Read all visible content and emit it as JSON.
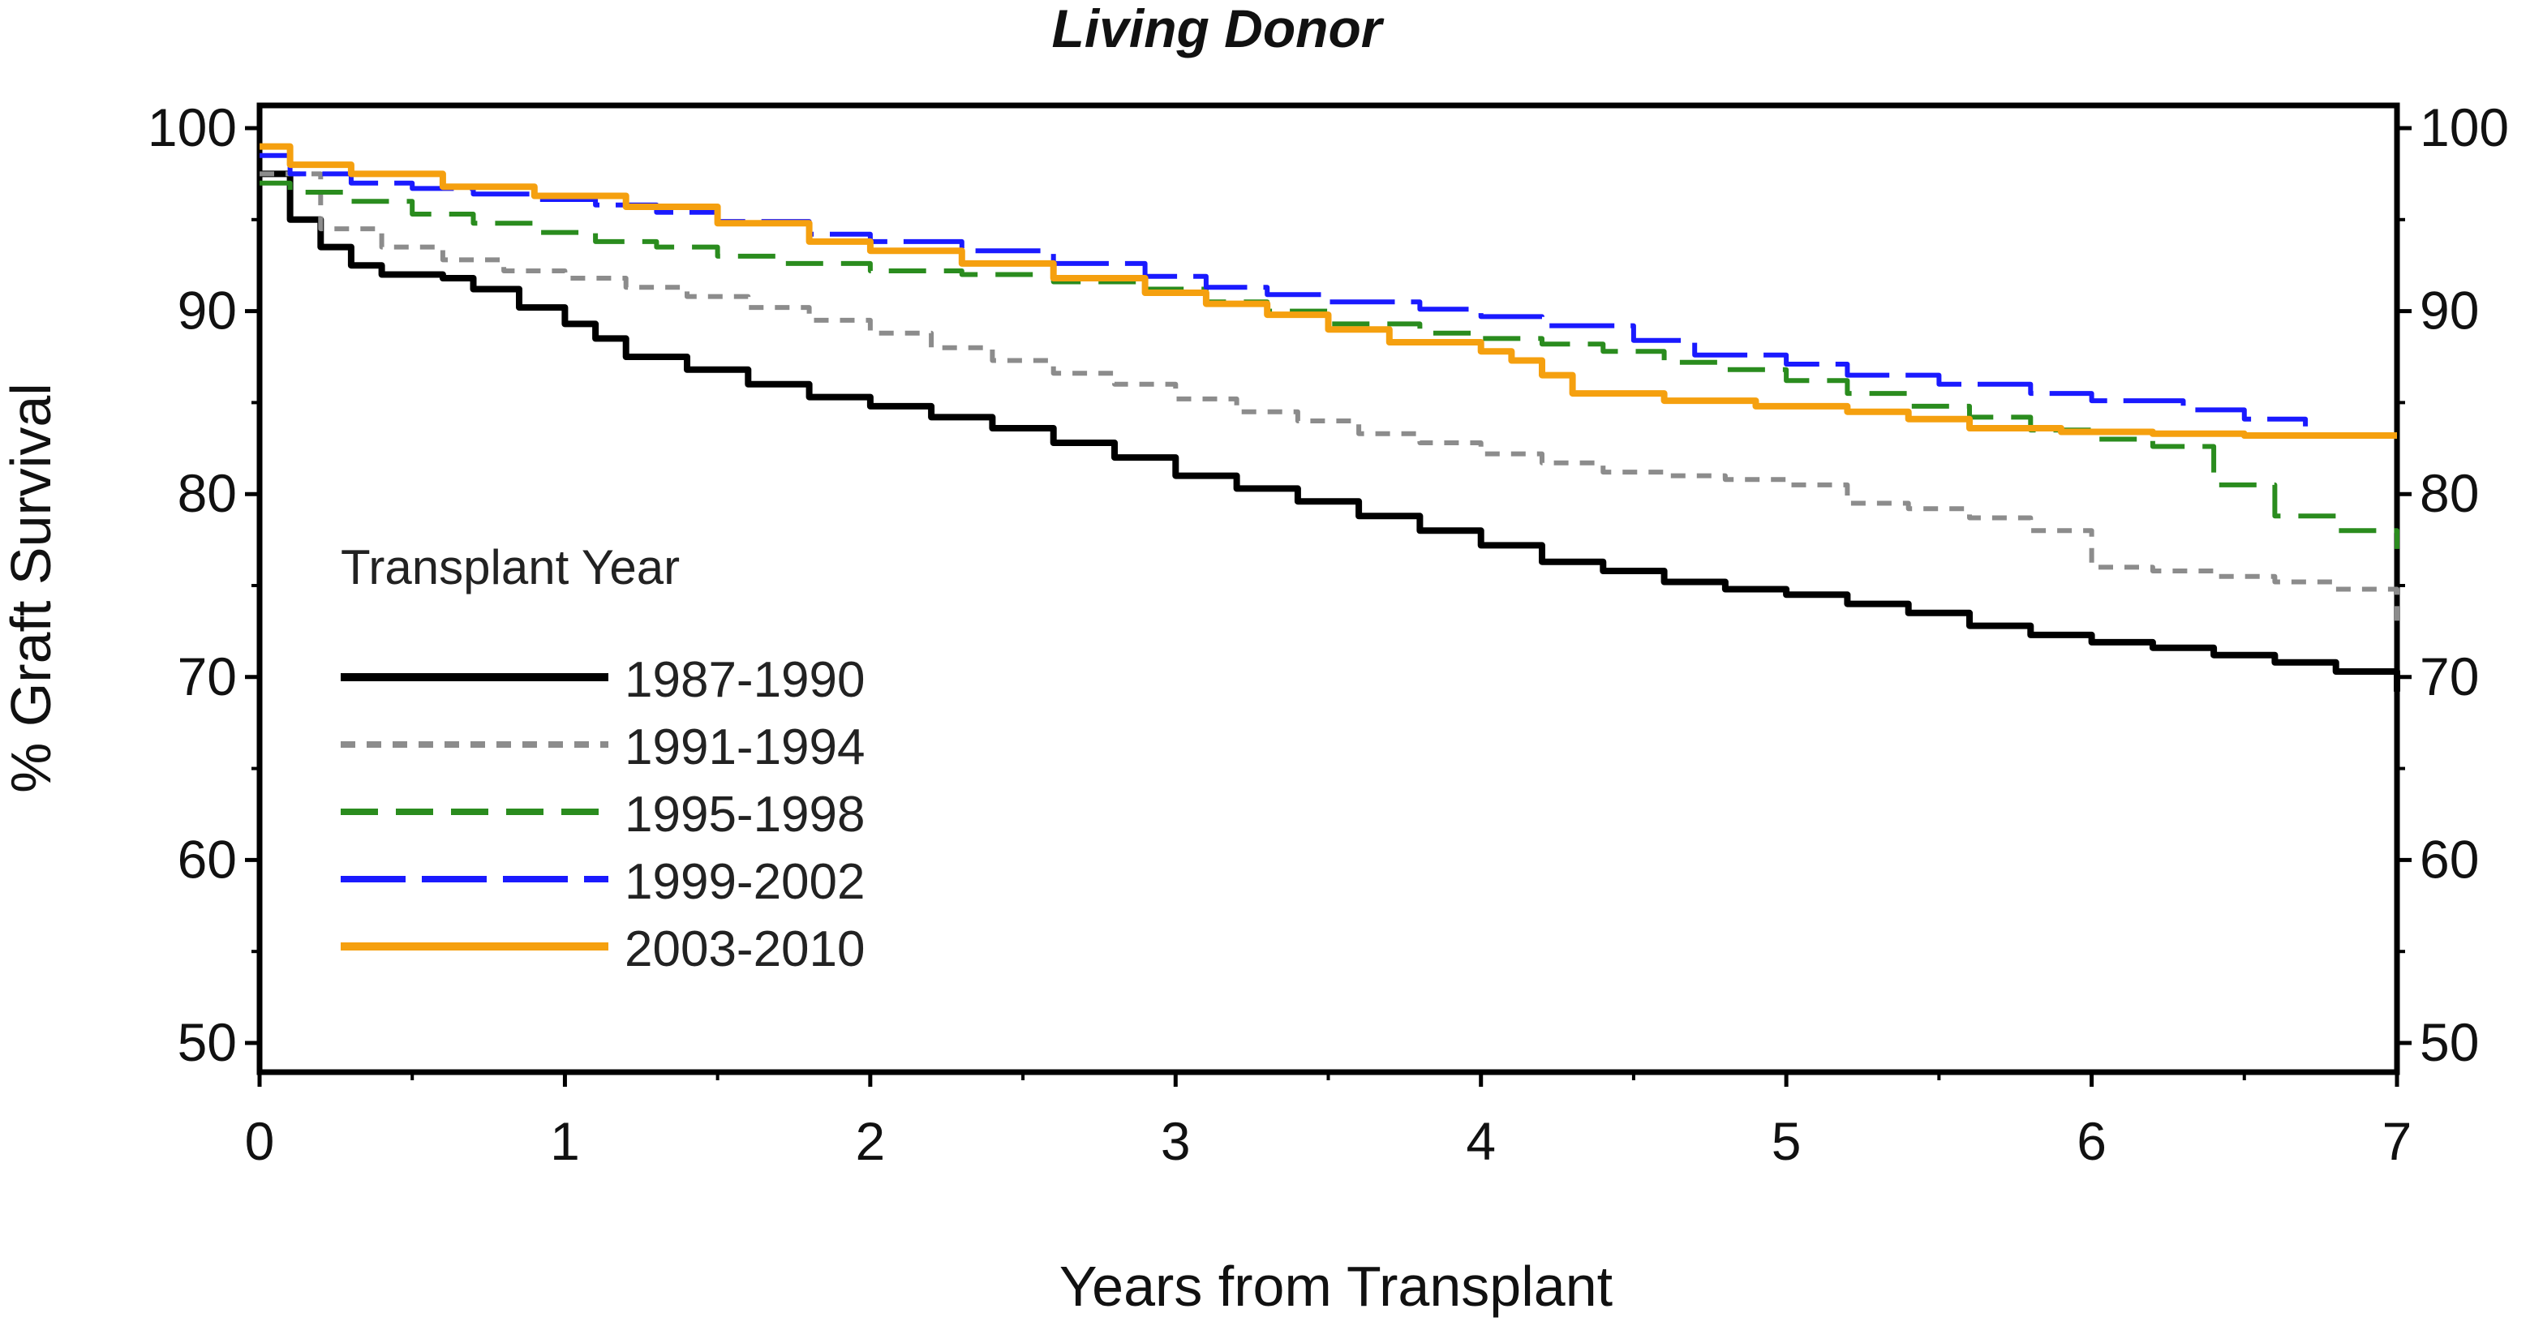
{
  "chart_data": {
    "type": "line",
    "title": "Living Donor",
    "xlabel": "Years from Transplant",
    "ylabel": "% Graft Survival",
    "xlim": [
      0,
      7
    ],
    "ylim": [
      50,
      100
    ],
    "x_ticks": [
      0,
      1,
      2,
      3,
      4,
      5,
      6,
      7
    ],
    "y_ticks": [
      50,
      60,
      70,
      80,
      90,
      100
    ],
    "right_axis_ticks": true,
    "grid": false,
    "legend": {
      "title": "Transplant Year",
      "placement": "lower-left, inside plot"
    },
    "series": [
      {
        "name": "1987-1990",
        "color": "#000000",
        "style": "solid",
        "x": [
          0,
          0.1,
          0.2,
          0.3,
          0.4,
          0.6,
          0.7,
          0.85,
          1.0,
          1.1,
          1.2,
          1.4,
          1.6,
          1.8,
          2.0,
          2.2,
          2.4,
          2.6,
          2.8,
          3.0,
          3.2,
          3.4,
          3.6,
          3.8,
          4.0,
          4.2,
          4.4,
          4.6,
          4.8,
          5.0,
          5.2,
          5.4,
          5.6,
          5.8,
          6.0,
          6.2,
          6.4,
          6.6,
          6.8,
          7.0
        ],
        "y": [
          97.5,
          95.0,
          93.5,
          92.5,
          92.0,
          91.8,
          91.2,
          90.2,
          89.3,
          88.5,
          87.5,
          86.8,
          86.0,
          85.3,
          84.8,
          84.2,
          83.6,
          82.8,
          82.0,
          81.0,
          80.3,
          79.6,
          78.8,
          78.0,
          77.2,
          76.3,
          75.8,
          75.2,
          74.8,
          74.5,
          74.0,
          73.5,
          72.8,
          72.3,
          71.9,
          71.6,
          71.2,
          70.8,
          70.3,
          69.2
        ]
      },
      {
        "name": "1991-1994",
        "color": "#8c8c8c",
        "style": "dotted",
        "x": [
          0,
          0.2,
          0.4,
          0.6,
          0.8,
          1.0,
          1.2,
          1.4,
          1.6,
          1.8,
          2.0,
          2.2,
          2.4,
          2.6,
          2.8,
          3.0,
          3.2,
          3.4,
          3.6,
          3.8,
          4.0,
          4.2,
          4.4,
          4.6,
          4.8,
          5.0,
          5.2,
          5.4,
          5.6,
          5.8,
          6.0,
          6.2,
          6.4,
          6.6,
          6.8,
          7.0
        ],
        "y": [
          97.5,
          94.5,
          93.5,
          92.8,
          92.2,
          91.8,
          91.3,
          90.8,
          90.2,
          89.5,
          88.8,
          88.0,
          87.3,
          86.6,
          86.0,
          85.2,
          84.5,
          84.0,
          83.3,
          82.8,
          82.2,
          81.7,
          81.2,
          81.0,
          80.8,
          80.5,
          79.5,
          79.2,
          78.7,
          78.0,
          76.0,
          75.8,
          75.5,
          75.2,
          74.8,
          73.0
        ]
      },
      {
        "name": "1995-1998",
        "color": "#2a8c1e",
        "style": "dashed",
        "x": [
          0,
          0.1,
          0.3,
          0.5,
          0.7,
          0.9,
          1.1,
          1.3,
          1.5,
          1.7,
          2.0,
          2.3,
          2.6,
          2.9,
          3.1,
          3.3,
          3.5,
          3.8,
          4.0,
          4.2,
          4.4,
          4.6,
          4.8,
          5.0,
          5.2,
          5.4,
          5.6,
          5.8,
          6.0,
          6.2,
          6.4,
          6.6,
          6.8,
          7.0
        ],
        "y": [
          97.0,
          96.5,
          96.0,
          95.3,
          94.8,
          94.3,
          93.8,
          93.5,
          93.0,
          92.6,
          92.2,
          92.0,
          91.6,
          91.2,
          90.5,
          90.0,
          89.3,
          88.8,
          88.5,
          88.2,
          87.8,
          87.2,
          86.8,
          86.2,
          85.5,
          84.8,
          84.2,
          83.5,
          83.0,
          82.6,
          80.5,
          78.8,
          78.0,
          77.0
        ]
      },
      {
        "name": "1999-2002",
        "color": "#1a1aff",
        "style": "long-dash",
        "x": [
          0,
          0.1,
          0.3,
          0.5,
          0.7,
          0.9,
          1.1,
          1.3,
          1.5,
          1.8,
          2.0,
          2.3,
          2.6,
          2.9,
          3.1,
          3.3,
          3.5,
          3.8,
          4.0,
          4.2,
          4.5,
          4.7,
          5.0,
          5.2,
          5.5,
          5.8,
          6.0,
          6.3,
          6.5,
          6.7
        ],
        "y": [
          98.5,
          97.5,
          97.0,
          96.7,
          96.4,
          96.1,
          95.8,
          95.4,
          94.9,
          94.2,
          93.8,
          93.3,
          92.6,
          91.9,
          91.3,
          90.9,
          90.5,
          90.1,
          89.7,
          89.2,
          88.4,
          87.6,
          87.1,
          86.5,
          86.0,
          85.5,
          85.1,
          84.6,
          84.1,
          83.7
        ]
      },
      {
        "name": "2003-2010",
        "color": "#f5a00f",
        "style": "solid",
        "x": [
          0,
          0.1,
          0.3,
          0.6,
          0.9,
          1.2,
          1.5,
          1.8,
          2.0,
          2.3,
          2.6,
          2.9,
          3.1,
          3.3,
          3.5,
          3.7,
          4.0,
          4.1,
          4.2,
          4.3,
          4.6,
          4.9,
          5.2,
          5.4,
          5.6,
          5.9,
          6.2,
          6.5,
          6.8,
          7.0
        ],
        "y": [
          99.0,
          98.0,
          97.5,
          96.8,
          96.3,
          95.7,
          94.8,
          93.8,
          93.3,
          92.6,
          91.8,
          91.0,
          90.4,
          89.8,
          89.0,
          88.3,
          87.8,
          87.3,
          86.5,
          85.5,
          85.1,
          84.8,
          84.5,
          84.1,
          83.6,
          83.4,
          83.3,
          83.2,
          83.2,
          83.2
        ]
      }
    ]
  }
}
